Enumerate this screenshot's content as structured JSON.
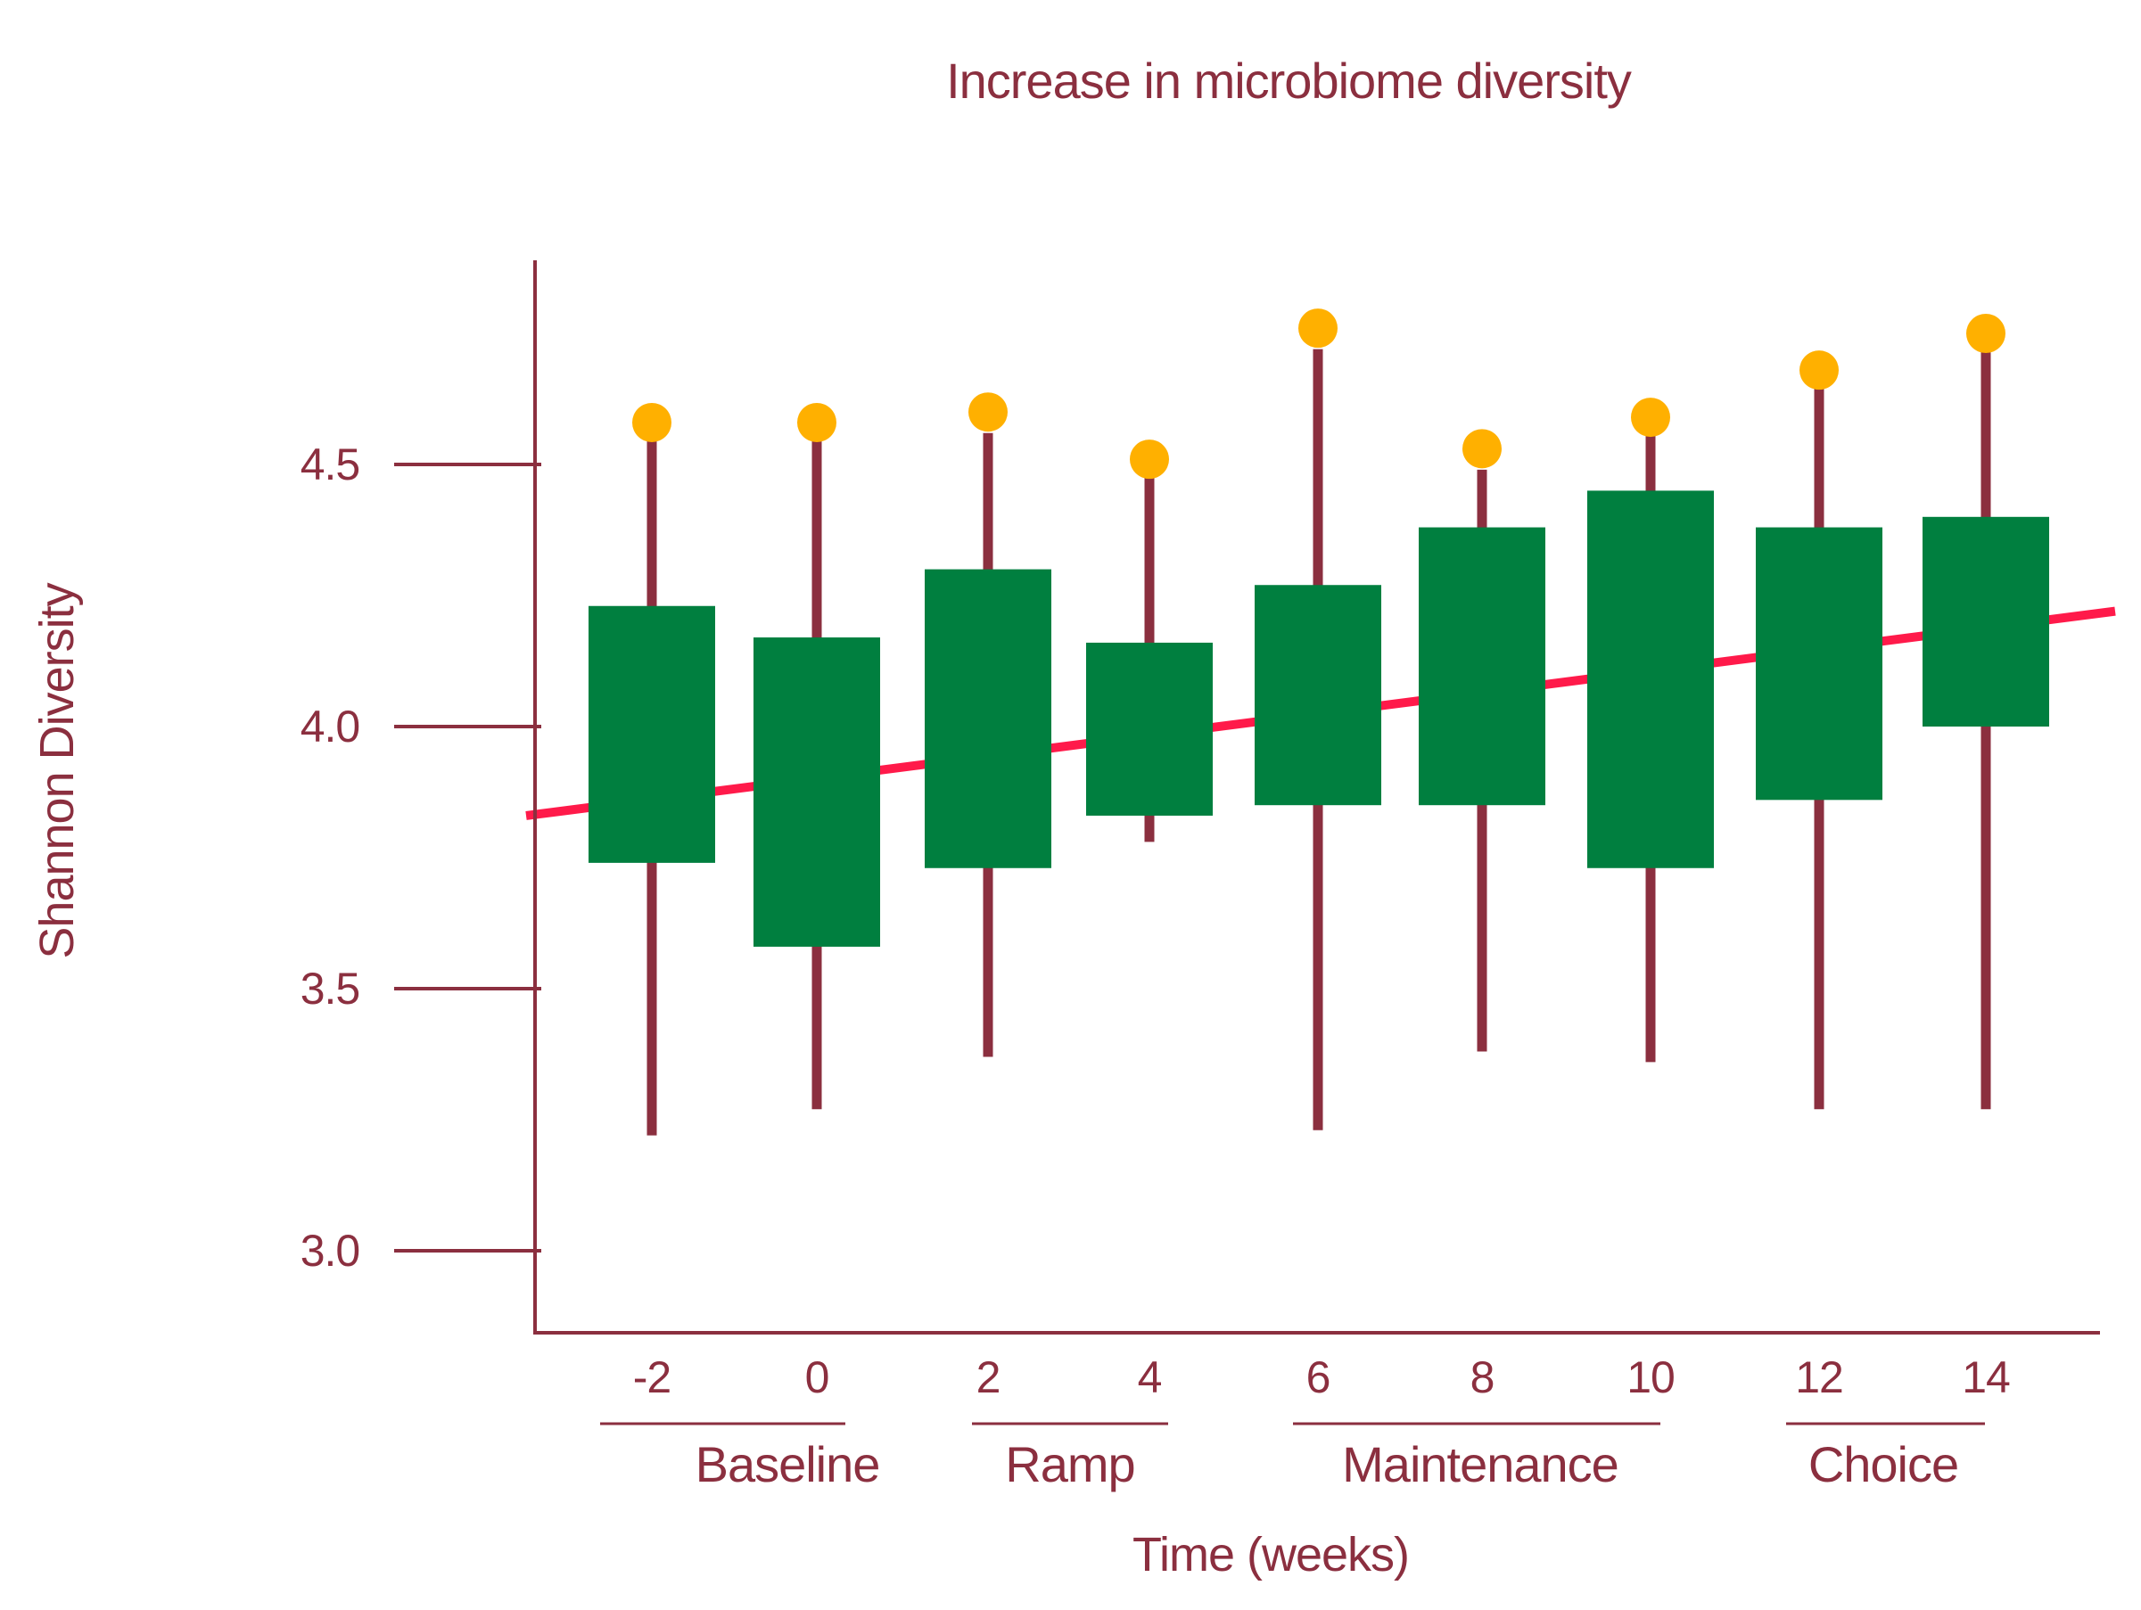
{
  "colors": {
    "text": "#8B2F3F",
    "axis": "#8B2F3F",
    "box": "#007F3F",
    "whisker": "#8B2F3F",
    "outlier": "#FFB000",
    "trend": "#FF1A4A",
    "background": "#FFFFFF"
  },
  "chart_data": {
    "type": "box",
    "title": "Increase in microbiome diversity",
    "xlabel": "Time (weeks)",
    "ylabel": "Shannon Diversity",
    "ylim": [
      2.85,
      4.9
    ],
    "yticks": [
      3.0,
      3.5,
      4.0,
      4.5
    ],
    "ytick_labels": [
      "3.0",
      "3.5",
      "4.0",
      "4.5"
    ],
    "grid": false,
    "legend": "none",
    "categories": [
      "-2",
      "0",
      "2",
      "4",
      "6",
      "8",
      "10",
      "12",
      "14"
    ],
    "boxes": [
      {
        "week": "-2",
        "whisker_low": 3.22,
        "q1": 3.74,
        "q3": 4.23,
        "whisker_high": 4.55,
        "outlier": 4.58
      },
      {
        "week": "0",
        "whisker_low": 3.27,
        "q1": 3.58,
        "q3": 4.17,
        "whisker_high": 4.55,
        "outlier": 4.58
      },
      {
        "week": "2",
        "whisker_low": 3.37,
        "q1": 3.73,
        "q3": 4.3,
        "whisker_high": 4.56,
        "outlier": 4.6
      },
      {
        "week": "4",
        "whisker_low": 3.78,
        "q1": 3.83,
        "q3": 4.16,
        "whisker_high": 4.48,
        "outlier": 4.51
      },
      {
        "week": "6",
        "whisker_low": 3.23,
        "q1": 3.85,
        "q3": 4.27,
        "whisker_high": 4.72,
        "outlier": 4.76
      },
      {
        "week": "8",
        "whisker_low": 3.38,
        "q1": 3.85,
        "q3": 4.38,
        "whisker_high": 4.49,
        "outlier": 4.53
      },
      {
        "week": "10",
        "whisker_low": 3.36,
        "q1": 3.73,
        "q3": 4.45,
        "whisker_high": 4.56,
        "outlier": 4.59
      },
      {
        "week": "12",
        "whisker_low": 3.27,
        "q1": 3.86,
        "q3": 4.38,
        "whisker_high": 4.65,
        "outlier": 4.68
      },
      {
        "week": "14",
        "whisker_low": 3.27,
        "q1": 4.0,
        "q3": 4.4,
        "whisker_high": 4.72,
        "outlier": 4.75
      }
    ],
    "trend_line": {
      "start": 3.83,
      "end": 4.22
    },
    "groups": [
      {
        "label": "Baseline",
        "weeks": [
          "-2",
          "0"
        ]
      },
      {
        "label": "Ramp",
        "weeks": [
          "2",
          "4"
        ]
      },
      {
        "label": "Maintenance",
        "weeks": [
          "6",
          "8",
          "10"
        ]
      },
      {
        "label": "Choice",
        "weeks": [
          "12",
          "14"
        ]
      }
    ]
  }
}
